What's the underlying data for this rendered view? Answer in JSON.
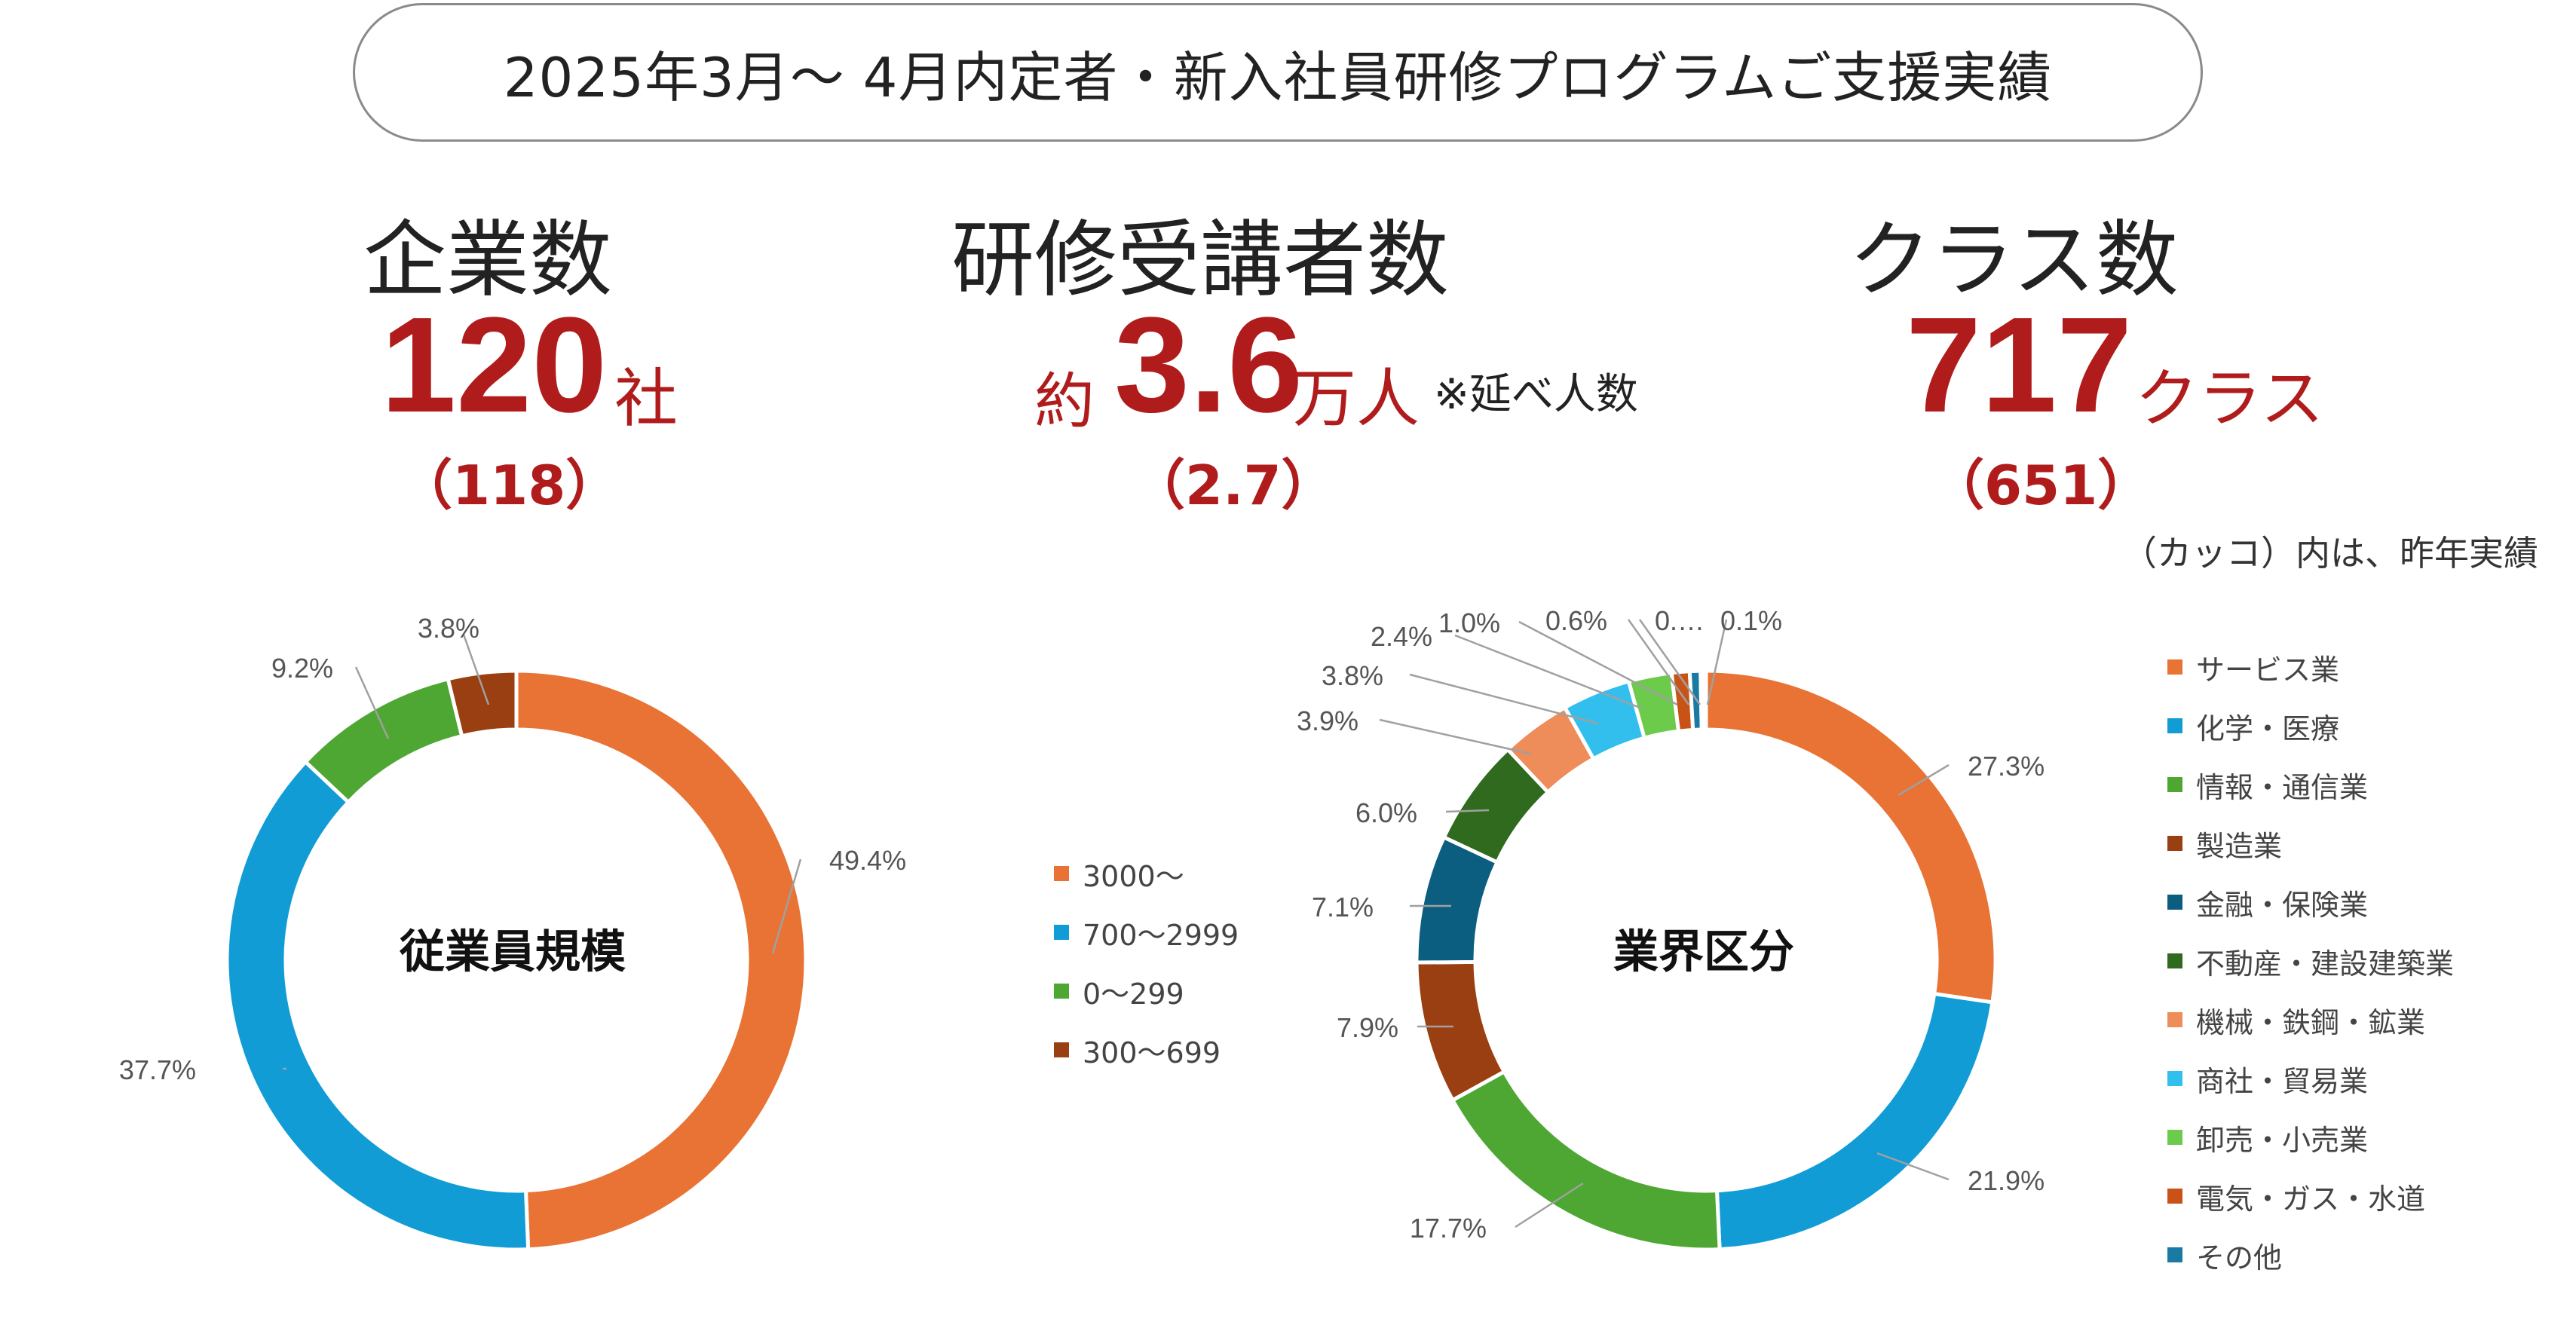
{
  "header": {
    "title": "2025年3月～ 4月内定者・新入社員研修プログラムご支援実績"
  },
  "stats": {
    "companies": {
      "label": "企業数",
      "value": "120",
      "unit": "社",
      "previous": "（118）"
    },
    "participants": {
      "label": "研修受講者数",
      "prefix": "約",
      "value": "3.6",
      "unit": "万人",
      "note": "※延べ人数",
      "previous": "（2.7）"
    },
    "classes": {
      "label": "クラス数",
      "value": "717",
      "unit": "クラス",
      "previous": "（651）"
    },
    "footnote": "（カッコ）内は、昨年実績"
  },
  "chart_data": [
    {
      "type": "pie",
      "variant": "donut",
      "title": "従業員規模",
      "slices": [
        {
          "label": "3000～",
          "value": 49.4,
          "display": "49.4%",
          "color": "#E87334"
        },
        {
          "label": "700～2999",
          "value": 37.7,
          "display": "37.7%",
          "color": "#119CD5"
        },
        {
          "label": "0～299",
          "value": 9.2,
          "display": "9.2%",
          "color": "#4FA733"
        },
        {
          "label": "300～699",
          "value": 3.8,
          "display": "3.8%",
          "color": "#9A3F12"
        }
      ]
    },
    {
      "type": "pie",
      "variant": "donut",
      "title": "業界区分",
      "slices": [
        {
          "label": "サービス業",
          "value": 27.3,
          "display": "27.3%",
          "color": "#E87334"
        },
        {
          "label": "化学・医療",
          "value": 21.9,
          "display": "21.9%",
          "color": "#119CD5"
        },
        {
          "label": "情報・通信業",
          "value": 17.7,
          "display": "17.7%",
          "color": "#4FA733"
        },
        {
          "label": "製造業",
          "value": 7.9,
          "display": "7.9%",
          "color": "#9A3F12"
        },
        {
          "label": "金融・保険業",
          "value": 7.1,
          "display": "7.1%",
          "color": "#0B5E80"
        },
        {
          "label": "不動産・建設建築業",
          "value": 6.0,
          "display": "6.0%",
          "color": "#2F6A1F"
        },
        {
          "label": "機械・鉄鋼・鉱業",
          "value": 3.9,
          "display": "3.9%",
          "color": "#EE8C5A"
        },
        {
          "label": "商社・貿易業",
          "value": 3.8,
          "display": "3.8%",
          "color": "#33BFEE"
        },
        {
          "label": "卸売・小売業",
          "value": 2.4,
          "display": "2.4%",
          "color": "#6CCB4B"
        },
        {
          "label": "電気・ガス・水道",
          "value": 1.0,
          "display": "1.0%",
          "color": "#C95317"
        },
        {
          "label": "その他",
          "value": 0.6,
          "display": "0.6%",
          "color": "#1A7AA3"
        },
        {
          "label": "",
          "value": 0.2,
          "display": "0.…",
          "color": "#2B5C8A"
        },
        {
          "label": "",
          "value": 0.1,
          "display": "0.1%",
          "color": "#3A8CC0"
        }
      ]
    }
  ]
}
